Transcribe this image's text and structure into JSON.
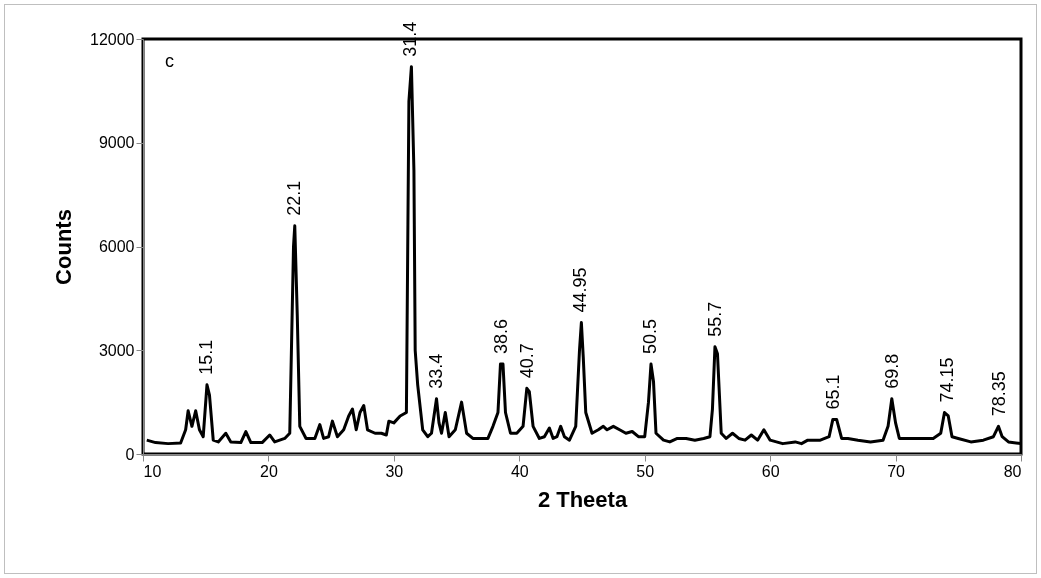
{
  "chart_data": {
    "type": "line",
    "xlabel": "2 Theeta",
    "ylabel": "Counts",
    "xlim": [
      10,
      80
    ],
    "xticks": [
      10,
      20,
      30,
      40,
      50,
      60,
      70,
      80
    ],
    "ylim": [
      0,
      12000
    ],
    "yticks": [
      0,
      3000,
      6000,
      9000,
      12000
    ],
    "grid": false,
    "marker": "none",
    "line_style": "solid",
    "series": [
      {
        "color": "#000000",
        "x": [
          10.3,
          11,
          12,
          13,
          13.4,
          13.6,
          13.9,
          14.2,
          14.5,
          14.8,
          15.1,
          15.3,
          15.6,
          16,
          16.6,
          17,
          17.8,
          18.2,
          18.6,
          19.5,
          20.1,
          20.5,
          21.3,
          21.7,
          22.0,
          22.1,
          22.3,
          22.5,
          23,
          23.7,
          24.1,
          24.4,
          24.8,
          25.1,
          25.5,
          26,
          26.4,
          26.7,
          27,
          27.3,
          27.6,
          27.9,
          28.5,
          29,
          29.4,
          29.6,
          30,
          30.5,
          31.0,
          31.2,
          31.4,
          31.6,
          31.7,
          31.9,
          32.3,
          32.7,
          33.0,
          33.4,
          33.6,
          33.8,
          34.1,
          34.4,
          34.9,
          35.4,
          35.8,
          36.3,
          37,
          37.5,
          37.9,
          38.3,
          38.5,
          38.7,
          38.9,
          39.3,
          39.8,
          40.3,
          40.6,
          40.8,
          41.1,
          41.6,
          42,
          42.4,
          42.7,
          43,
          43.3,
          43.6,
          44,
          44.5,
          44.8,
          44.95,
          45.1,
          45.3,
          45.8,
          46.3,
          46.7,
          47,
          47.5,
          48,
          48.5,
          49,
          49.5,
          50.0,
          50.3,
          50.5,
          50.7,
          50.9,
          51.5,
          52,
          52.6,
          53.3,
          54,
          54.7,
          55.2,
          55.4,
          55.6,
          55.8,
          56.1,
          56.5,
          57,
          57.5,
          58,
          58.5,
          59,
          59.5,
          60,
          61,
          62,
          62.5,
          63,
          64,
          64.7,
          65,
          65.3,
          65.7,
          66.2,
          67,
          68,
          69,
          69.4,
          69.7,
          70,
          70.3,
          71,
          72,
          73,
          73.6,
          73.9,
          74.2,
          74.5,
          75,
          76,
          77,
          77.8,
          78.2,
          78.5,
          79,
          80
        ],
        "values": [
          400,
          330,
          300,
          320,
          700,
          1250,
          800,
          1250,
          700,
          500,
          2000,
          1700,
          400,
          350,
          600,
          350,
          330,
          650,
          330,
          330,
          550,
          350,
          450,
          600,
          6000,
          6600,
          4000,
          800,
          450,
          450,
          850,
          450,
          500,
          950,
          500,
          700,
          1100,
          1300,
          700,
          1200,
          1400,
          700,
          600,
          600,
          550,
          950,
          900,
          1100,
          1200,
          10200,
          11200,
          8200,
          3000,
          2000,
          700,
          500,
          600,
          1600,
          900,
          600,
          1200,
          500,
          700,
          1500,
          600,
          450,
          450,
          450,
          800,
          1200,
          2600,
          2600,
          1200,
          600,
          600,
          800,
          1900,
          1800,
          800,
          450,
          500,
          750,
          450,
          500,
          800,
          500,
          400,
          800,
          3000,
          3800,
          2800,
          1200,
          600,
          700,
          800,
          700,
          800,
          700,
          600,
          650,
          500,
          500,
          1500,
          2600,
          2100,
          600,
          400,
          350,
          450,
          450,
          400,
          450,
          500,
          1300,
          3100,
          2900,
          600,
          450,
          600,
          450,
          400,
          550,
          400,
          700,
          400,
          300,
          350,
          300,
          400,
          400,
          500,
          1000,
          1000,
          450,
          450,
          400,
          350,
          400,
          800,
          1600,
          900,
          450,
          450,
          450,
          450,
          600,
          1200,
          1100,
          500,
          450,
          350,
          400,
          500,
          800,
          500,
          350,
          300
        ]
      }
    ],
    "annotations": [
      "c",
      {
        "text": "15.1",
        "x": 15.1,
        "y": 2000
      },
      {
        "text": "22.1",
        "x": 22.1,
        "y": 6600
      },
      {
        "text": "31.4",
        "x": 31.4,
        "y": 11200
      },
      {
        "text": "33.4",
        "x": 33.4,
        "y": 1600
      },
      {
        "text": "38.6",
        "x": 38.6,
        "y": 2600
      },
      {
        "text": "40.7",
        "x": 40.7,
        "y": 1900
      },
      {
        "text": "44.95",
        "x": 44.95,
        "y": 3800
      },
      {
        "text": "50.5",
        "x": 50.5,
        "y": 2600
      },
      {
        "text": "55.7",
        "x": 55.7,
        "y": 3100
      },
      {
        "text": "65.1",
        "x": 65.1,
        "y": 1000
      },
      {
        "text": "69.8",
        "x": 69.8,
        "y": 1600
      },
      {
        "text": "74.15",
        "x": 74.15,
        "y": 1200
      },
      {
        "text": "78.35",
        "x": 78.35,
        "y": 800
      }
    ]
  }
}
